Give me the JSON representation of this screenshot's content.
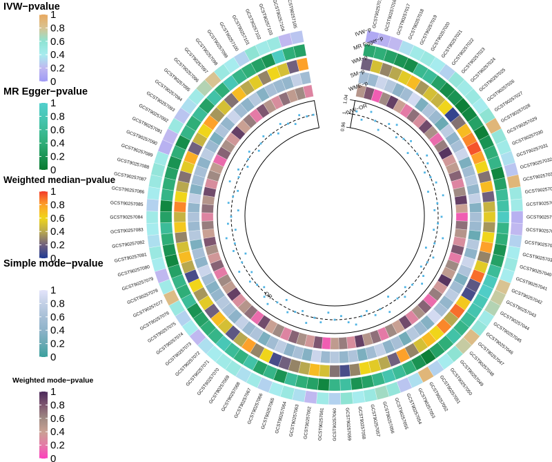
{
  "chart_data": {
    "type": "circular-heatmap",
    "title": "",
    "ids": [
      "GCST90257015",
      "GCST90257016",
      "GCST90257017",
      "GCST90257018",
      "GCST90257019",
      "GCST90257020",
      "GCST90257021",
      "GCST90257022",
      "GCST90257023",
      "GCST90257024",
      "GCST90257025",
      "GCST90257026",
      "GCST90257027",
      "GCST90257028",
      "GCST90257029",
      "GCST90257030",
      "GCST90257031",
      "GCST90257032",
      "GCST90257033",
      "GCST90257034",
      "GCST90257035",
      "GCST90257036",
      "GCST90257037",
      "GCST90257038",
      "GCST90257039",
      "GCST90257040",
      "GCST90257041",
      "GCST90257042",
      "GCST90257043",
      "GCST90257044",
      "GCST90257045",
      "GCST90257046",
      "GCST90257047",
      "GCST90257048",
      "GCST90257049",
      "GCST90257050",
      "GCST90257051",
      "GCST90257052",
      "GCST90257053",
      "GCST90257054",
      "GCST90257055",
      "GCST90257056",
      "GCST90257057",
      "GCST90257058",
      "GCST90257059",
      "GCST90257060",
      "GCST90257061",
      "GCST90257062",
      "GCST90257063",
      "GCST90257064",
      "GCST90257065",
      "GCST90257066",
      "GCST90257067",
      "GCST90257068",
      "GCST90257069",
      "GCST90257070",
      "GCST90257071",
      "GCST90257072",
      "GCST90257073",
      "GCST90257074",
      "GCST90257075",
      "GCST90257076",
      "GCST90257077",
      "GCST90257078",
      "GCST90257079",
      "GCST90257080",
      "GCST90257081",
      "GCST90257082",
      "GCST90257083",
      "GCST90257084",
      "GCST90257085",
      "GCST90257086",
      "GCST90257087",
      "GCST90257088",
      "GCST90257089",
      "GCST90257090",
      "GCST90257091",
      "GCST90257092",
      "GCST90257093",
      "GCST90257094",
      "GCST90257095",
      "GCST90257096",
      "GCST90257097",
      "GCST90257098",
      "GCST90257099",
      "GCST90257100",
      "GCST90257101",
      "GCST90257102",
      "GCST90257103",
      "GCST90257104",
      "GCST90257105"
    ],
    "track_labels": [
      "IVW−p",
      "MR Egger−p",
      "WM−p",
      "SM−p",
      "WME−p",
      "IVW−OR"
    ],
    "axis_ticks": [
      "0.96",
      "1",
      "1.04"
    ],
    "or_label": "OR",
    "legends": [
      {
        "title": "IVW−pvalue",
        "ticks": [
          "1",
          "0.8",
          "0.6",
          "0.4",
          "0.2",
          "0"
        ],
        "colors": [
          "#9f9af5",
          "#c0b8f0",
          "#a6ecee",
          "#8ee3d3",
          "#d8c392",
          "#e8a860"
        ]
      },
      {
        "title": "MR Egger−pvalue",
        "ticks": [
          "1",
          "0.8",
          "0.6",
          "0.4",
          "0.2",
          "0"
        ],
        "colors": [
          "#087a2f",
          "#1a9353",
          "#2fae78",
          "#3cbc98",
          "#48c7b6",
          "#52cfcd"
        ]
      },
      {
        "title": "Weighted median−pvalue",
        "ticks": [
          "1",
          "0.8",
          "0.6",
          "0.4",
          "0.2",
          "0"
        ],
        "colors": [
          "#1f3a93",
          "#71607e",
          "#b8a84f",
          "#f0d51a",
          "#fda12a",
          "#f23a2b"
        ]
      },
      {
        "title": "Simple mode−pvalue",
        "ticks": [
          "1",
          "0.8",
          "0.6",
          "0.4",
          "0.2",
          "0"
        ],
        "colors": [
          "#3aa09d",
          "#6aaab4",
          "#8eb3c9",
          "#a7bfd6",
          "#c3d0e6",
          "#e3e4fb"
        ]
      },
      {
        "title": "Weighted mode−pvalue",
        "ticks": [
          "1",
          "0.8",
          "0.6",
          "0.4",
          "0.2",
          "0"
        ],
        "colors": [
          "#fc3fbe",
          "#e47aa6",
          "#c9a093",
          "#a08a83",
          "#7e5670",
          "#4b2a5a"
        ]
      }
    ],
    "ivw_p": [
      0.1,
      0.15,
      0.2,
      0.35,
      0.45,
      0.5,
      0.4,
      0.3,
      0.55,
      0.45,
      0.5,
      0.4,
      0.6,
      0.9,
      0.55,
      0.45,
      0.35,
      0.25,
      0.9,
      0.5,
      0.45,
      0.15,
      0.2,
      0.3,
      0.4,
      0.5,
      0.4,
      0.8,
      0.75,
      0.7,
      0.45,
      0.55,
      0.85,
      0.75,
      0.6,
      0.4,
      0.3,
      0.9,
      0.35,
      0.25,
      0.55,
      0.65,
      0.5,
      0.4,
      0.6,
      0.3,
      0.45,
      0.2,
      0.35,
      0.5,
      0.4,
      0.3,
      0.45,
      0.35,
      0.5,
      0.45,
      0.4,
      0.35,
      0.2,
      0.4,
      0.3,
      0.5,
      0.85,
      0.45,
      0.2,
      0.4,
      0.5,
      0.35,
      0.4,
      0.45,
      0.3,
      0.4,
      0.5,
      0.55,
      0.45,
      0.15,
      0.2,
      0.5,
      0.25,
      0.35,
      0.45,
      0.7,
      0.8,
      0.5,
      0.4,
      0.3,
      0.6,
      0.45,
      0.5,
      0.2,
      0.25
    ],
    "egger_p": [
      0.35,
      0.4,
      0.3,
      0.2,
      0.15,
      0.55,
      0.6,
      0.3,
      0.15,
      0.2,
      0.05,
      0.1,
      0.3,
      0.05,
      0.2,
      0.4,
      0.5,
      0.1,
      0.3,
      0.6,
      0.7,
      0.9,
      0.5,
      0.4,
      0.2,
      0.3,
      0.6,
      0.85,
      0.95,
      0.8,
      0.75,
      0.6,
      0.5,
      0.7,
      0.4,
      0.3,
      0.05,
      0.2,
      0.4,
      0.6,
      0.75,
      0.5,
      0.3,
      0.2,
      0.65,
      0.5,
      0.1,
      0.3,
      0.4,
      0.6,
      0.2,
      0.5,
      0.3,
      0.7,
      0.45,
      0.6,
      0.8,
      0.5,
      0.4,
      0.3,
      0.2,
      0.6,
      0.4,
      0.5,
      0.3,
      0.1,
      0.2,
      0.4,
      0.6,
      0.3,
      0.1,
      0.5,
      0.4,
      0.3,
      0.2,
      0.4,
      0.15,
      0.5,
      0.4,
      0.6,
      0.3,
      0.7,
      0.4,
      0.8,
      0.5,
      0.4,
      0.3,
      0.2,
      0.9,
      0.4,
      0.3
    ],
    "wm_p": [
      0.2,
      0.5,
      0.3,
      0.4,
      0.55,
      0.7,
      0.35,
      0.5,
      0.45,
      0.6,
      0.05,
      0.25,
      0.7,
      0.85,
      0.95,
      0.8,
      0.6,
      0.25,
      0.7,
      0.2,
      0.45,
      0.55,
      0.35,
      0.6,
      0.8,
      0.3,
      0.55,
      0.9,
      0.15,
      0.1,
      0.65,
      0.9,
      0.4,
      0.85,
      0.6,
      0.7,
      0.5,
      0.3,
      0.8,
      0.2,
      0.4,
      0.55,
      0.6,
      0.3,
      0.1,
      0.25,
      0.5,
      0.7,
      0.4,
      0.3,
      0.2,
      0.1,
      0.6,
      0.3,
      0.8,
      0.4,
      0.15,
      0.5,
      0.7,
      0.2,
      0.55,
      0.35,
      0.6,
      0.1,
      0.4,
      0.7,
      0.5,
      0.3,
      0.65,
      0.45,
      0.85,
      0.6,
      0.4,
      0.25,
      0.55,
      0.75,
      0.2,
      0.45,
      0.6,
      0.8,
      0.35,
      0.5,
      0.25,
      0.7,
      0.4,
      0.55,
      0.3,
      0.6,
      0.5,
      0.2,
      0.8
    ],
    "sm_p": [
      0.6,
      0.5,
      0.85,
      0.7,
      0.4,
      0.55,
      0.9,
      0.3,
      0.65,
      0.5,
      0.2,
      0.75,
      0.4,
      0.6,
      0.85,
      0.3,
      0.55,
      0.7,
      0.45,
      0.8,
      0.35,
      0.6,
      0.5,
      0.2,
      0.7,
      0.4,
      0.85,
      0.65,
      0.3,
      0.55,
      0.75,
      0.45,
      0.6,
      0.9,
      0.35,
      0.5,
      0.7,
      0.25,
      0.6,
      0.4,
      0.8,
      0.55,
      0.3,
      0.65,
      0.45,
      0.7,
      0.5,
      0.85,
      0.35,
      0.6,
      0.4,
      0.75,
      0.55,
      0.3,
      0.65,
      0.5,
      0.8,
      0.4,
      0.6,
      0.7,
      0.45,
      0.35,
      0.55,
      0.85,
      0.4,
      0.6,
      0.3,
      0.7,
      0.5,
      0.65,
      0.45,
      0.8,
      0.35,
      0.55,
      0.6,
      0.4,
      0.75,
      0.5,
      0.3,
      0.65,
      0.45,
      0.85,
      0.55,
      0.4,
      0.7,
      0.35,
      0.6,
      0.5,
      0.45,
      0.8,
      0.55
    ],
    "wme_p": [
      0.5,
      0.8,
      0.1,
      0.6,
      0.9,
      0.4,
      0.2,
      0.7,
      0.3,
      0.85,
      0.55,
      0.15,
      0.65,
      0.95,
      0.35,
      0.45,
      0.75,
      0.25,
      0.6,
      0.9,
      0.4,
      0.1,
      0.7,
      0.5,
      0.3,
      0.8,
      0.2,
      0.6,
      0.45,
      0.95,
      0.35,
      0.65,
      0.15,
      0.75,
      0.55,
      0.25,
      0.85,
      0.4,
      0.6,
      0.2,
      0.7,
      0.5,
      0.9,
      0.3,
      0.65,
      0.45,
      0.1,
      0.8,
      0.35,
      0.55,
      0.75,
      0.25,
      0.6,
      0.4,
      0.85,
      0.15,
      0.7,
      0.5,
      0.3,
      0.9,
      0.45,
      0.6,
      0.2,
      0.75,
      0.35,
      0.55,
      0.8,
      0.4,
      0.65,
      0.25,
      0.7,
      0.5,
      0.85,
      0.3,
      0.6,
      0.45,
      0.15,
      0.75,
      0.55,
      0.35,
      0.9,
      0.4,
      0.65,
      0.2,
      0.8,
      0.5,
      0.3,
      0.7,
      0.45,
      0.6,
      0.25
    ],
    "ivw_or": [
      1.01,
      0.99,
      1.02,
      1.0,
      0.98,
      1.01,
      1.02,
      0.99,
      1.0,
      1.01,
      0.98,
      1.0,
      1.02,
      1.01,
      0.99,
      1.0,
      1.01,
      0.98,
      1.02,
      1.0,
      0.99,
      1.01,
      1.0,
      0.99,
      1.02,
      1.0,
      0.98,
      1.01,
      1.0,
      0.99,
      1.01,
      1.02,
      1.0,
      0.99,
      1.01,
      1.0,
      0.98,
      1.02,
      1.0,
      1.01,
      0.99,
      1.0,
      1.02,
      1.01,
      0.99,
      1.0,
      0.98,
      1.01,
      1.0,
      1.02,
      0.99,
      1.0,
      1.01,
      0.98,
      1.0,
      1.02,
      1.01,
      0.99,
      1.0,
      1.01,
      0.99,
      1.02,
      1.0,
      0.98,
      1.01,
      1.0,
      1.02,
      0.99,
      1.01,
      1.0,
      0.98,
      1.01,
      1.0,
      0.99,
      1.02,
      1.0,
      1.01,
      0.99,
      1.0,
      1.01,
      0.99,
      1.0,
      1.01,
      1.0,
      0.99,
      1.01,
      1.0,
      0.99,
      1.01,
      1.0,
      1.0
    ]
  }
}
